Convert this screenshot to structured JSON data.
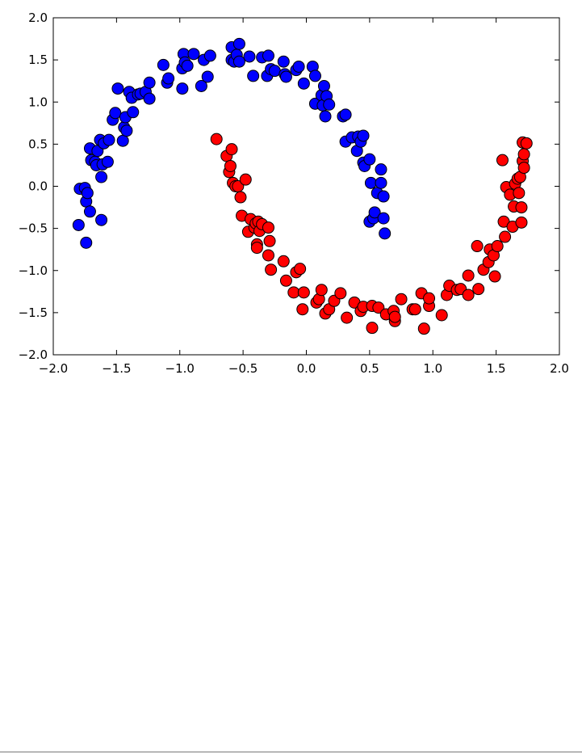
{
  "chart_data": {
    "type": "scatter",
    "title": "",
    "xlabel": "",
    "ylabel": "",
    "xlim": [
      -2.0,
      2.0
    ],
    "ylim": [
      -2.0,
      2.0
    ],
    "grid": false,
    "xticks": [
      "−2.0",
      "−1.5",
      "−1.0",
      "−0.5",
      "0.0",
      "0.5",
      "1.0",
      "1.5",
      "2.0"
    ],
    "xtick_values": [
      -2.0,
      -1.5,
      -1.0,
      -0.5,
      0.0,
      0.5,
      1.0,
      1.5,
      2.0
    ],
    "yticks": [
      "2.0",
      "1.5",
      "1.0",
      "0.5",
      "0.0",
      "−0.5",
      "−1.0",
      "−1.5",
      "−2.0"
    ],
    "ytick_values": [
      2.0,
      1.5,
      1.0,
      0.5,
      0.0,
      -0.5,
      -1.0,
      -1.5,
      -2.0
    ],
    "series": [
      {
        "color": "#0000ff",
        "points": [
          [
            -1.8,
            -0.46
          ],
          [
            -1.79,
            -0.03
          ],
          [
            -1.75,
            -0.02
          ],
          [
            -1.74,
            -0.67
          ],
          [
            -1.74,
            -0.18
          ],
          [
            -1.73,
            -0.08
          ],
          [
            -1.71,
            -0.3
          ],
          [
            -1.71,
            0.45
          ],
          [
            -1.7,
            0.31
          ],
          [
            -1.67,
            0.29
          ],
          [
            -1.66,
            0.25
          ],
          [
            -1.65,
            0.42
          ],
          [
            -1.63,
            0.55
          ],
          [
            -1.62,
            0.11
          ],
          [
            -1.62,
            -0.4
          ],
          [
            -1.61,
            0.26
          ],
          [
            -1.6,
            0.51
          ],
          [
            -1.57,
            0.29
          ],
          [
            -1.56,
            0.55
          ],
          [
            -1.53,
            0.79
          ],
          [
            -1.51,
            0.87
          ],
          [
            -1.49,
            1.16
          ],
          [
            -1.45,
            0.54
          ],
          [
            -1.44,
            0.7
          ],
          [
            -1.43,
            0.82
          ],
          [
            -1.42,
            0.66
          ],
          [
            -1.4,
            1.12
          ],
          [
            -1.38,
            1.05
          ],
          [
            -1.37,
            0.88
          ],
          [
            -1.33,
            1.09
          ],
          [
            -1.31,
            1.1
          ],
          [
            -1.27,
            1.12
          ],
          [
            -1.24,
            1.04
          ],
          [
            -1.24,
            1.23
          ],
          [
            -1.13,
            1.44
          ],
          [
            -1.1,
            1.23
          ],
          [
            -1.09,
            1.28
          ],
          [
            -0.98,
            1.4
          ],
          [
            -0.98,
            1.16
          ],
          [
            -0.97,
            1.57
          ],
          [
            -0.96,
            1.47
          ],
          [
            -0.94,
            1.43
          ],
          [
            -0.89,
            1.57
          ],
          [
            -0.83,
            1.19
          ],
          [
            -0.81,
            1.5
          ],
          [
            -0.78,
            1.3
          ],
          [
            -0.76,
            1.55
          ],
          [
            -0.59,
            1.65
          ],
          [
            -0.59,
            1.5
          ],
          [
            -0.57,
            1.48
          ],
          [
            -0.55,
            1.56
          ],
          [
            -0.53,
            1.69
          ],
          [
            -0.53,
            1.48
          ],
          [
            -0.45,
            1.54
          ],
          [
            -0.42,
            1.31
          ],
          [
            -0.35,
            1.53
          ],
          [
            -0.31,
            1.31
          ],
          [
            -0.3,
            1.55
          ],
          [
            -0.28,
            1.39
          ],
          [
            -0.25,
            1.37
          ],
          [
            -0.18,
            1.48
          ],
          [
            -0.17,
            1.33
          ],
          [
            -0.16,
            1.3
          ],
          [
            -0.08,
            1.38
          ],
          [
            -0.06,
            1.42
          ],
          [
            -0.02,
            1.22
          ],
          [
            0.05,
            1.42
          ],
          [
            0.07,
            1.31
          ],
          [
            0.07,
            0.98
          ],
          [
            0.12,
            1.08
          ],
          [
            0.13,
            0.96
          ],
          [
            0.14,
            1.19
          ],
          [
            0.15,
            0.83
          ],
          [
            0.16,
            1.07
          ],
          [
            0.18,
            0.97
          ],
          [
            0.29,
            0.83
          ],
          [
            0.31,
            0.85
          ],
          [
            0.31,
            0.53
          ],
          [
            0.36,
            0.58
          ],
          [
            0.4,
            0.42
          ],
          [
            0.41,
            0.59
          ],
          [
            0.43,
            0.53
          ],
          [
            0.45,
            0.6
          ],
          [
            0.45,
            0.28
          ],
          [
            0.46,
            0.24
          ],
          [
            0.5,
            0.32
          ],
          [
            0.5,
            -0.42
          ],
          [
            0.51,
            0.04
          ],
          [
            0.53,
            -0.38
          ],
          [
            0.54,
            -0.31
          ],
          [
            0.56,
            -0.08
          ],
          [
            0.59,
            0.2
          ],
          [
            0.59,
            0.04
          ],
          [
            0.61,
            -0.12
          ],
          [
            0.61,
            -0.38
          ],
          [
            0.62,
            -0.56
          ]
        ]
      },
      {
        "color": "#ff0000",
        "points": [
          [
            -0.71,
            0.56
          ],
          [
            -0.63,
            0.36
          ],
          [
            -0.61,
            0.17
          ],
          [
            -0.6,
            0.24
          ],
          [
            -0.59,
            0.44
          ],
          [
            -0.58,
            0.04
          ],
          [
            -0.56,
            0.0
          ],
          [
            -0.54,
            0.0
          ],
          [
            -0.52,
            -0.13
          ],
          [
            -0.51,
            -0.35
          ],
          [
            -0.48,
            0.08
          ],
          [
            -0.46,
            -0.54
          ],
          [
            -0.44,
            -0.39
          ],
          [
            -0.41,
            -0.49
          ],
          [
            -0.4,
            -0.44
          ],
          [
            -0.39,
            -0.69
          ],
          [
            -0.39,
            -0.73
          ],
          [
            -0.38,
            -0.42
          ],
          [
            -0.37,
            -0.53
          ],
          [
            -0.35,
            -0.45
          ],
          [
            -0.3,
            -0.49
          ],
          [
            -0.3,
            -0.82
          ],
          [
            -0.29,
            -0.65
          ],
          [
            -0.28,
            -0.99
          ],
          [
            -0.18,
            -0.89
          ],
          [
            -0.16,
            -1.12
          ],
          [
            -0.1,
            -1.26
          ],
          [
            -0.08,
            -1.02
          ],
          [
            -0.05,
            -0.98
          ],
          [
            -0.02,
            -1.26
          ],
          [
            -0.03,
            -1.46
          ],
          [
            0.08,
            -1.38
          ],
          [
            0.1,
            -1.34
          ],
          [
            0.12,
            -1.23
          ],
          [
            0.15,
            -1.51
          ],
          [
            0.18,
            -1.46
          ],
          [
            0.22,
            -1.36
          ],
          [
            0.27,
            -1.27
          ],
          [
            0.32,
            -1.56
          ],
          [
            0.38,
            -1.38
          ],
          [
            0.43,
            -1.48
          ],
          [
            0.45,
            -1.43
          ],
          [
            0.52,
            -1.42
          ],
          [
            0.52,
            -1.68
          ],
          [
            0.57,
            -1.44
          ],
          [
            0.63,
            -1.52
          ],
          [
            0.69,
            -1.48
          ],
          [
            0.7,
            -1.6
          ],
          [
            0.7,
            -1.55
          ],
          [
            0.75,
            -1.34
          ],
          [
            0.84,
            -1.46
          ],
          [
            0.86,
            -1.46
          ],
          [
            0.91,
            -1.27
          ],
          [
            0.93,
            -1.69
          ],
          [
            0.97,
            -1.42
          ],
          [
            0.97,
            -1.33
          ],
          [
            1.07,
            -1.53
          ],
          [
            1.11,
            -1.29
          ],
          [
            1.13,
            -1.18
          ],
          [
            1.19,
            -1.23
          ],
          [
            1.22,
            -1.22
          ],
          [
            1.28,
            -1.06
          ],
          [
            1.28,
            -1.29
          ],
          [
            1.35,
            -0.71
          ],
          [
            1.36,
            -1.22
          ],
          [
            1.4,
            -0.99
          ],
          [
            1.44,
            -0.9
          ],
          [
            1.45,
            -0.75
          ],
          [
            1.48,
            -0.82
          ],
          [
            1.49,
            -1.07
          ],
          [
            1.51,
            -0.71
          ],
          [
            1.55,
            0.31
          ],
          [
            1.56,
            -0.42
          ],
          [
            1.57,
            -0.6
          ],
          [
            1.58,
            -0.01
          ],
          [
            1.61,
            -0.1
          ],
          [
            1.63,
            -0.48
          ],
          [
            1.64,
            -0.24
          ],
          [
            1.65,
            0.03
          ],
          [
            1.67,
            0.09
          ],
          [
            1.68,
            -0.08
          ],
          [
            1.69,
            0.11
          ],
          [
            1.7,
            -0.25
          ],
          [
            1.7,
            -0.43
          ],
          [
            1.71,
            0.52
          ],
          [
            1.71,
            0.3
          ],
          [
            1.72,
            0.38
          ],
          [
            1.72,
            0.22
          ],
          [
            1.74,
            0.51
          ]
        ]
      }
    ]
  }
}
